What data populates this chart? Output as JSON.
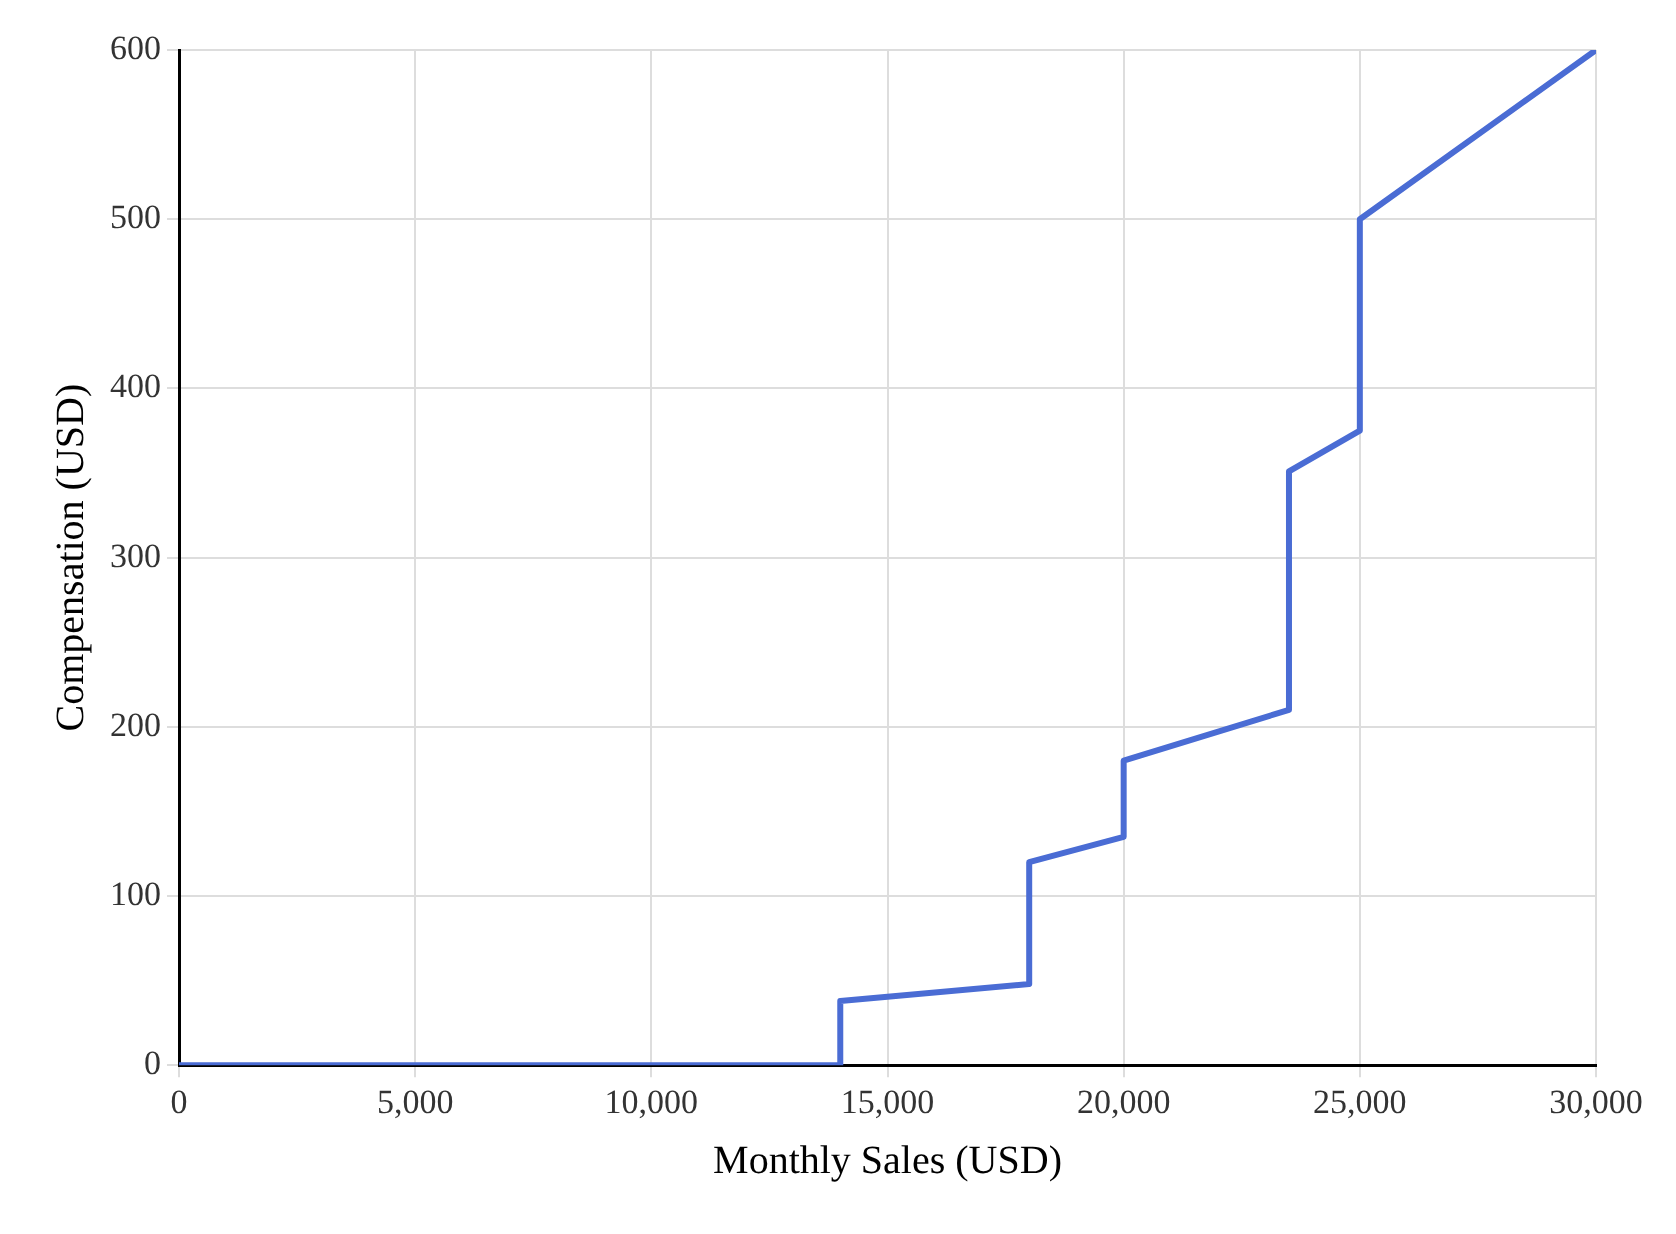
{
  "chart_data": {
    "type": "line",
    "xlabel": "Monthly Sales (USD)",
    "ylabel": "Compensation (USD)",
    "x": [
      0,
      14000,
      14000,
      18000,
      18000,
      20000,
      20000,
      23500,
      23500,
      25000,
      25000,
      30000
    ],
    "series": [
      {
        "color": "#4a6cd4",
        "values": [
          0,
          0,
          38,
          48,
          120,
          135,
          180,
          210,
          351,
          375,
          500,
          600
        ]
      }
    ],
    "xlim": [
      0,
      30000
    ],
    "xticks": [
      {
        "value": 0,
        "label": "0"
      },
      {
        "value": 5000,
        "label": "5,000"
      },
      {
        "value": 10000,
        "label": "10,000"
      },
      {
        "value": 15000,
        "label": "15,000"
      },
      {
        "value": 20000,
        "label": "20,000"
      },
      {
        "value": 25000,
        "label": "25,000"
      },
      {
        "value": 30000,
        "label": "30,000"
      }
    ],
    "ylim": [
      0,
      600
    ],
    "yticks": [
      0,
      100,
      200,
      300,
      400,
      500,
      600
    ],
    "grid": true,
    "legend": false,
    "marker": "none",
    "line_style": "solid"
  }
}
